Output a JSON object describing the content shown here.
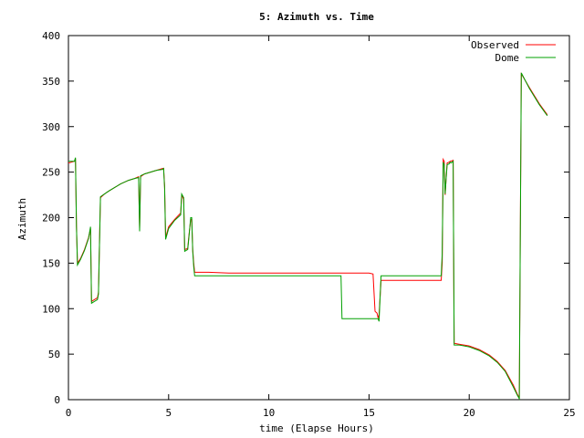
{
  "chart_data": {
    "type": "line",
    "title": "5: Azimuth vs. Time",
    "xlabel": "time (Elapse Hours)",
    "ylabel": "Azimuth",
    "xlim": [
      0,
      25
    ],
    "ylim": [
      0,
      400
    ],
    "xticks": [
      0,
      5,
      10,
      15,
      20,
      25
    ],
    "yticks": [
      0,
      50,
      100,
      150,
      200,
      250,
      300,
      350,
      400
    ],
    "grid": false,
    "legend_position": "top-right",
    "series": [
      {
        "name": "Observed",
        "color": "#ff0000",
        "points": [
          [
            0.0,
            260
          ],
          [
            0.3,
            262
          ],
          [
            0.35,
            265
          ],
          [
            0.4,
            190
          ],
          [
            0.45,
            150
          ],
          [
            0.6,
            155
          ],
          [
            0.8,
            165
          ],
          [
            1.0,
            178
          ],
          [
            1.1,
            188
          ],
          [
            1.15,
            108
          ],
          [
            1.3,
            110
          ],
          [
            1.45,
            112
          ],
          [
            1.5,
            118
          ],
          [
            1.6,
            222
          ],
          [
            1.8,
            226
          ],
          [
            2.0,
            229
          ],
          [
            2.3,
            233
          ],
          [
            2.6,
            237
          ],
          [
            3.0,
            241
          ],
          [
            3.3,
            243
          ],
          [
            3.5,
            245
          ],
          [
            3.55,
            188
          ],
          [
            3.6,
            245
          ],
          [
            3.8,
            248
          ],
          [
            4.1,
            250
          ],
          [
            4.4,
            252
          ],
          [
            4.7,
            254
          ],
          [
            4.75,
            254
          ],
          [
            4.8,
            235
          ],
          [
            4.85,
            178
          ],
          [
            5.0,
            190
          ],
          [
            5.3,
            198
          ],
          [
            5.6,
            205
          ],
          [
            5.65,
            225
          ],
          [
            5.75,
            220
          ],
          [
            5.8,
            165
          ],
          [
            5.95,
            166
          ],
          [
            6.0,
            178
          ],
          [
            6.1,
            198
          ],
          [
            6.15,
            198
          ],
          [
            6.2,
            165
          ],
          [
            6.25,
            150
          ],
          [
            6.3,
            140
          ],
          [
            7.0,
            140
          ],
          [
            8.0,
            139
          ],
          [
            10.0,
            139
          ],
          [
            12.0,
            139
          ],
          [
            15.0,
            139
          ],
          [
            15.2,
            138
          ],
          [
            15.3,
            97
          ],
          [
            15.4,
            95
          ],
          [
            15.45,
            90
          ],
          [
            15.5,
            93
          ],
          [
            15.6,
            131
          ],
          [
            17.0,
            131
          ],
          [
            18.0,
            131
          ],
          [
            18.6,
            131
          ],
          [
            18.65,
            150
          ],
          [
            18.7,
            264
          ],
          [
            18.75,
            262
          ],
          [
            18.8,
            225
          ],
          [
            18.9,
            260
          ],
          [
            19.0,
            261
          ],
          [
            19.05,
            262
          ],
          [
            19.1,
            262
          ],
          [
            19.2,
            263
          ],
          [
            19.25,
            62
          ],
          [
            19.5,
            61
          ],
          [
            20.0,
            59
          ],
          [
            20.5,
            55
          ],
          [
            21.0,
            49
          ],
          [
            21.4,
            42
          ],
          [
            21.8,
            32
          ],
          [
            22.2,
            16
          ],
          [
            22.4,
            6
          ],
          [
            22.5,
            2
          ],
          [
            22.6,
            358
          ],
          [
            23.0,
            343
          ],
          [
            23.5,
            325
          ],
          [
            23.9,
            313
          ]
        ]
      },
      {
        "name": "Dome",
        "color": "#00a000",
        "points": [
          [
            0.0,
            262
          ],
          [
            0.3,
            262
          ],
          [
            0.35,
            266
          ],
          [
            0.4,
            190
          ],
          [
            0.45,
            148
          ],
          [
            0.6,
            154
          ],
          [
            0.8,
            164
          ],
          [
            1.0,
            177
          ],
          [
            1.1,
            190
          ],
          [
            1.15,
            106
          ],
          [
            1.3,
            108
          ],
          [
            1.45,
            110
          ],
          [
            1.5,
            116
          ],
          [
            1.6,
            223
          ],
          [
            1.8,
            226
          ],
          [
            2.0,
            229
          ],
          [
            2.3,
            233
          ],
          [
            2.6,
            237
          ],
          [
            3.0,
            241
          ],
          [
            3.3,
            243
          ],
          [
            3.5,
            244
          ],
          [
            3.55,
            185
          ],
          [
            3.6,
            246
          ],
          [
            3.8,
            248
          ],
          [
            4.1,
            250
          ],
          [
            4.4,
            252
          ],
          [
            4.7,
            253
          ],
          [
            4.75,
            254
          ],
          [
            4.8,
            232
          ],
          [
            4.85,
            176
          ],
          [
            5.0,
            188
          ],
          [
            5.3,
            197
          ],
          [
            5.6,
            203
          ],
          [
            5.65,
            226
          ],
          [
            5.75,
            222
          ],
          [
            5.8,
            163
          ],
          [
            5.95,
            165
          ],
          [
            6.0,
            176
          ],
          [
            6.1,
            200
          ],
          [
            6.15,
            200
          ],
          [
            6.2,
            163
          ],
          [
            6.25,
            146
          ],
          [
            6.3,
            136
          ],
          [
            7.0,
            136
          ],
          [
            8.0,
            136
          ],
          [
            10.0,
            136
          ],
          [
            12.0,
            136
          ],
          [
            13.6,
            136
          ],
          [
            13.65,
            89
          ],
          [
            14.5,
            89
          ],
          [
            15.45,
            89
          ],
          [
            15.5,
            86
          ],
          [
            15.55,
            112
          ],
          [
            15.6,
            136
          ],
          [
            17.0,
            136
          ],
          [
            18.0,
            136
          ],
          [
            18.6,
            136
          ],
          [
            18.65,
            160
          ],
          [
            18.7,
            261
          ],
          [
            18.75,
            258
          ],
          [
            18.8,
            226
          ],
          [
            18.9,
            258
          ],
          [
            19.0,
            259
          ],
          [
            19.05,
            261
          ],
          [
            19.1,
            260
          ],
          [
            19.2,
            262
          ],
          [
            19.25,
            60
          ],
          [
            19.5,
            60
          ],
          [
            20.0,
            58
          ],
          [
            20.5,
            54
          ],
          [
            21.0,
            48
          ],
          [
            21.4,
            41
          ],
          [
            21.8,
            31
          ],
          [
            22.2,
            14
          ],
          [
            22.4,
            5
          ],
          [
            22.5,
            1
          ],
          [
            22.6,
            359
          ],
          [
            23.0,
            342
          ],
          [
            23.5,
            324
          ],
          [
            23.9,
            312
          ]
        ]
      }
    ]
  }
}
